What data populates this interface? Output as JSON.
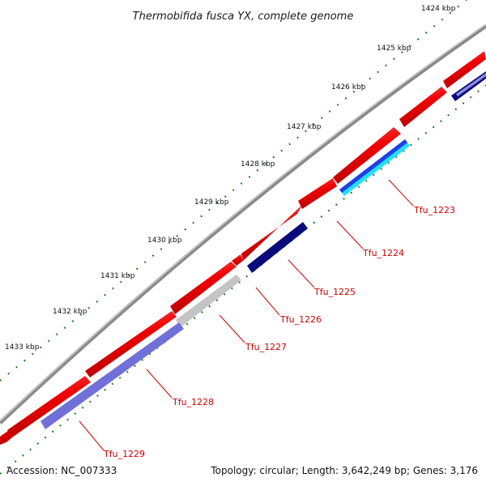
{
  "title": "Thermobifida fusca YX, complete genome",
  "footer": {
    "accession": "Accession: NC_007333",
    "summary": "Topology: circular; Length: 3,642,249 bp; Genes: 3,176"
  },
  "kbp_ticks": [
    "1424 kbp",
    "1425 kbp",
    "1426 kbp",
    "1427 kbp",
    "1428 kbp",
    "1429 kbp",
    "1430 kbp",
    "1431 kbp",
    "1432 kbp",
    "1433 kbp"
  ],
  "gene_labels": [
    "Tfu_1223",
    "Tfu_1224",
    "Tfu_1225",
    "Tfu_1226",
    "Tfu_1227",
    "Tfu_1228",
    "Tfu_1229"
  ],
  "colors": {
    "backbone": "#888888",
    "forward_gene": "#ee0000",
    "label": "#cc0000",
    "tick": "#1a7a1a",
    "navy": "#0a0a7a",
    "cyan": "#22e0ff",
    "blue": "#1f3fe8",
    "grey": "#c4c4c4",
    "lavender": "#7070d8"
  }
}
